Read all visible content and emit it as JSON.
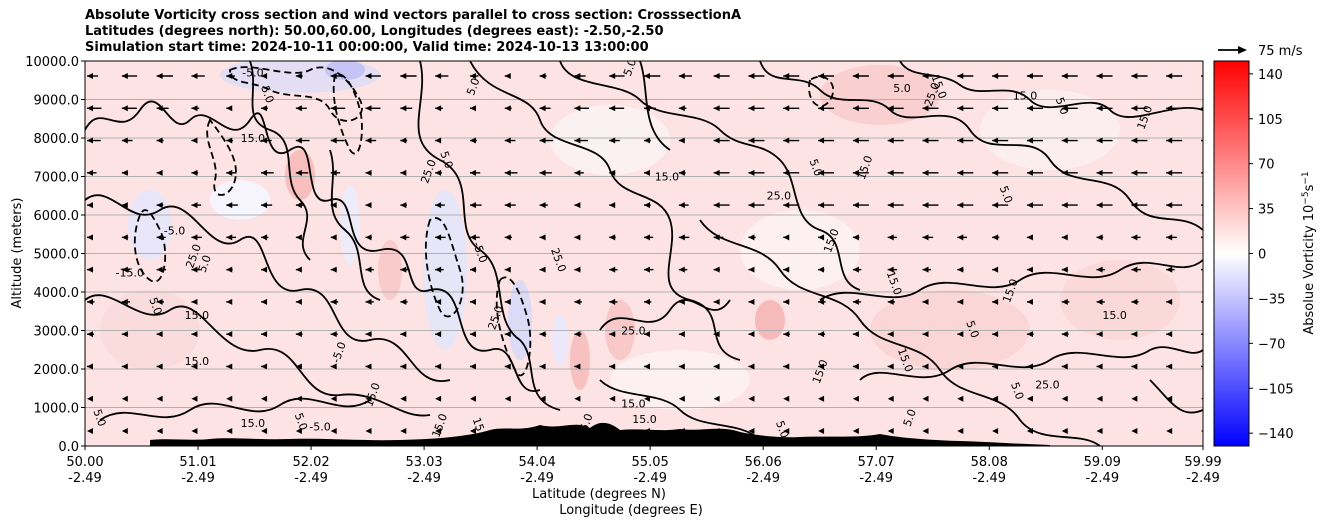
{
  "chart_data": {
    "type": "heatmap",
    "title_lines": [
      "Absolute Vorticity cross section and wind vectors parallel to cross section: CrosssectionA",
      "Latitudes (degrees north): 50.00,60.00, Longitudes (degrees east): -2.50,-2.50",
      "Simulation start time: 2024-10-11 00:00:00, Valid time: 2024-10-13 13:00:00"
    ],
    "ylabel": "Altitude (meters)",
    "xlabel_line1": "Latitude (degrees N)",
    "xlabel_line2": "Longitude (degrees E)",
    "ylim": [
      0,
      10000
    ],
    "yticks": [
      "0.0",
      "1000.0",
      "2000.0",
      "3000.0",
      "4000.0",
      "5000.0",
      "6000.0",
      "7000.0",
      "8000.0",
      "9000.0",
      "10000.0"
    ],
    "xticks_lat": [
      "50.00",
      "51.01",
      "52.02",
      "53.03",
      "54.04",
      "55.05",
      "56.06",
      "57.07",
      "58.08",
      "59.09",
      "59.99"
    ],
    "xticks_lon": [
      "-2.49",
      "-2.49",
      "-2.49",
      "-2.49",
      "-2.49",
      "-2.49",
      "-2.49",
      "-2.49",
      "-2.49",
      "-2.49",
      "-2.49"
    ],
    "xlim": [
      50.0,
      59.99
    ],
    "grid": "horizontal",
    "quiver_key_label": "75 m/s",
    "colorbar": {
      "label": "Absolue Vorticity 10",
      "label_unit_exp": "−5",
      "label_unit2": "s",
      "label_unit2_exp": "−1",
      "ticks": [
        "140",
        "105",
        "70",
        "35",
        "0",
        "−35",
        "−70",
        "−105",
        "−140"
      ],
      "range": [
        -150,
        150
      ],
      "colormap": "bwr"
    },
    "contour_levels": [
      "-15.0",
      "-5.0",
      "5.0",
      "15.0",
      "25.0"
    ],
    "contour_labels": [
      {
        "text": "5.0",
        "lat": 54.9,
        "alt": 9800
      },
      {
        "text": "-5.0",
        "lat": 51.5,
        "alt": 9600
      },
      {
        "text": "5.0",
        "lat": 51.6,
        "alt": 9100
      },
      {
        "text": "5.0",
        "lat": 53.5,
        "alt": 9300
      },
      {
        "text": "5.0",
        "lat": 57.3,
        "alt": 9200
      },
      {
        "text": "15.0",
        "lat": 57.6,
        "alt": 9300
      },
      {
        "text": "25.0",
        "lat": 57.6,
        "alt": 9100
      },
      {
        "text": "15.0",
        "lat": 58.4,
        "alt": 9000
      },
      {
        "text": "5.0",
        "lat": 58.7,
        "alt": 8800
      },
      {
        "text": "15.0",
        "lat": 59.5,
        "alt": 8500
      },
      {
        "text": "15.0",
        "lat": 51.5,
        "alt": 7900
      },
      {
        "text": "5.0",
        "lat": 53.2,
        "alt": 7400
      },
      {
        "text": "25.0",
        "lat": 53.1,
        "alt": 7100
      },
      {
        "text": "15.0",
        "lat": 55.2,
        "alt": 6900
      },
      {
        "text": "5.0",
        "lat": 56.5,
        "alt": 7200
      },
      {
        "text": "15.0",
        "lat": 57.0,
        "alt": 7200
      },
      {
        "text": "25.0",
        "lat": 56.2,
        "alt": 6400
      },
      {
        "text": "5.0",
        "lat": 58.2,
        "alt": 6500
      },
      {
        "text": "15.0",
        "lat": 56.7,
        "alt": 5300
      },
      {
        "text": "-5.0",
        "lat": 50.8,
        "alt": 5500
      },
      {
        "text": "-5.0",
        "lat": 53.5,
        "alt": 5000
      },
      {
        "text": "25.0",
        "lat": 51.0,
        "alt": 4900
      },
      {
        "text": "-15.0",
        "lat": 50.4,
        "alt": 4400
      },
      {
        "text": "25.0",
        "lat": 54.2,
        "alt": 4800
      },
      {
        "text": "5.0",
        "lat": 51.1,
        "alt": 4700
      },
      {
        "text": "15.0",
        "lat": 51.0,
        "alt": 3300
      },
      {
        "text": "5.0",
        "lat": 50.6,
        "alt": 3600
      },
      {
        "text": "25.0",
        "lat": 53.7,
        "alt": 3300
      },
      {
        "text": "25.0",
        "lat": 54.9,
        "alt": 2900
      },
      {
        "text": "15.0",
        "lat": 57.2,
        "alt": 4200
      },
      {
        "text": "15.0",
        "lat": 58.3,
        "alt": 4000
      },
      {
        "text": "15.0",
        "lat": 59.2,
        "alt": 3300
      },
      {
        "text": "5.0",
        "lat": 57.9,
        "alt": 3000
      },
      {
        "text": "-5.0",
        "lat": 52.3,
        "alt": 2400
      },
      {
        "text": "15.0",
        "lat": 51.0,
        "alt": 2100
      },
      {
        "text": "15.0",
        "lat": 57.3,
        "alt": 2200
      },
      {
        "text": "15.0",
        "lat": 56.6,
        "alt": 1900
      },
      {
        "text": "25.0",
        "lat": 58.6,
        "alt": 1500
      },
      {
        "text": "5.0",
        "lat": 58.3,
        "alt": 1400
      },
      {
        "text": "15.0",
        "lat": 52.6,
        "alt": 1300
      },
      {
        "text": "15.0",
        "lat": 54.9,
        "alt": 1000
      },
      {
        "text": "5.0",
        "lat": 51.9,
        "alt": 600
      },
      {
        "text": "15.0",
        "lat": 53.2,
        "alt": 500
      },
      {
        "text": "-5.0",
        "lat": 52.1,
        "alt": 400
      },
      {
        "text": "15.0",
        "lat": 53.5,
        "alt": 400
      },
      {
        "text": "15.0",
        "lat": 54.5,
        "alt": 500
      },
      {
        "text": "15.0",
        "lat": 55.0,
        "alt": 600
      },
      {
        "text": "5.0",
        "lat": 56.2,
        "alt": 400
      },
      {
        "text": "5.0",
        "lat": 57.4,
        "alt": 700
      },
      {
        "text": "15.0",
        "lat": 51.5,
        "alt": 500
      },
      {
        "text": "5.0",
        "lat": 50.1,
        "alt": 700
      }
    ]
  }
}
